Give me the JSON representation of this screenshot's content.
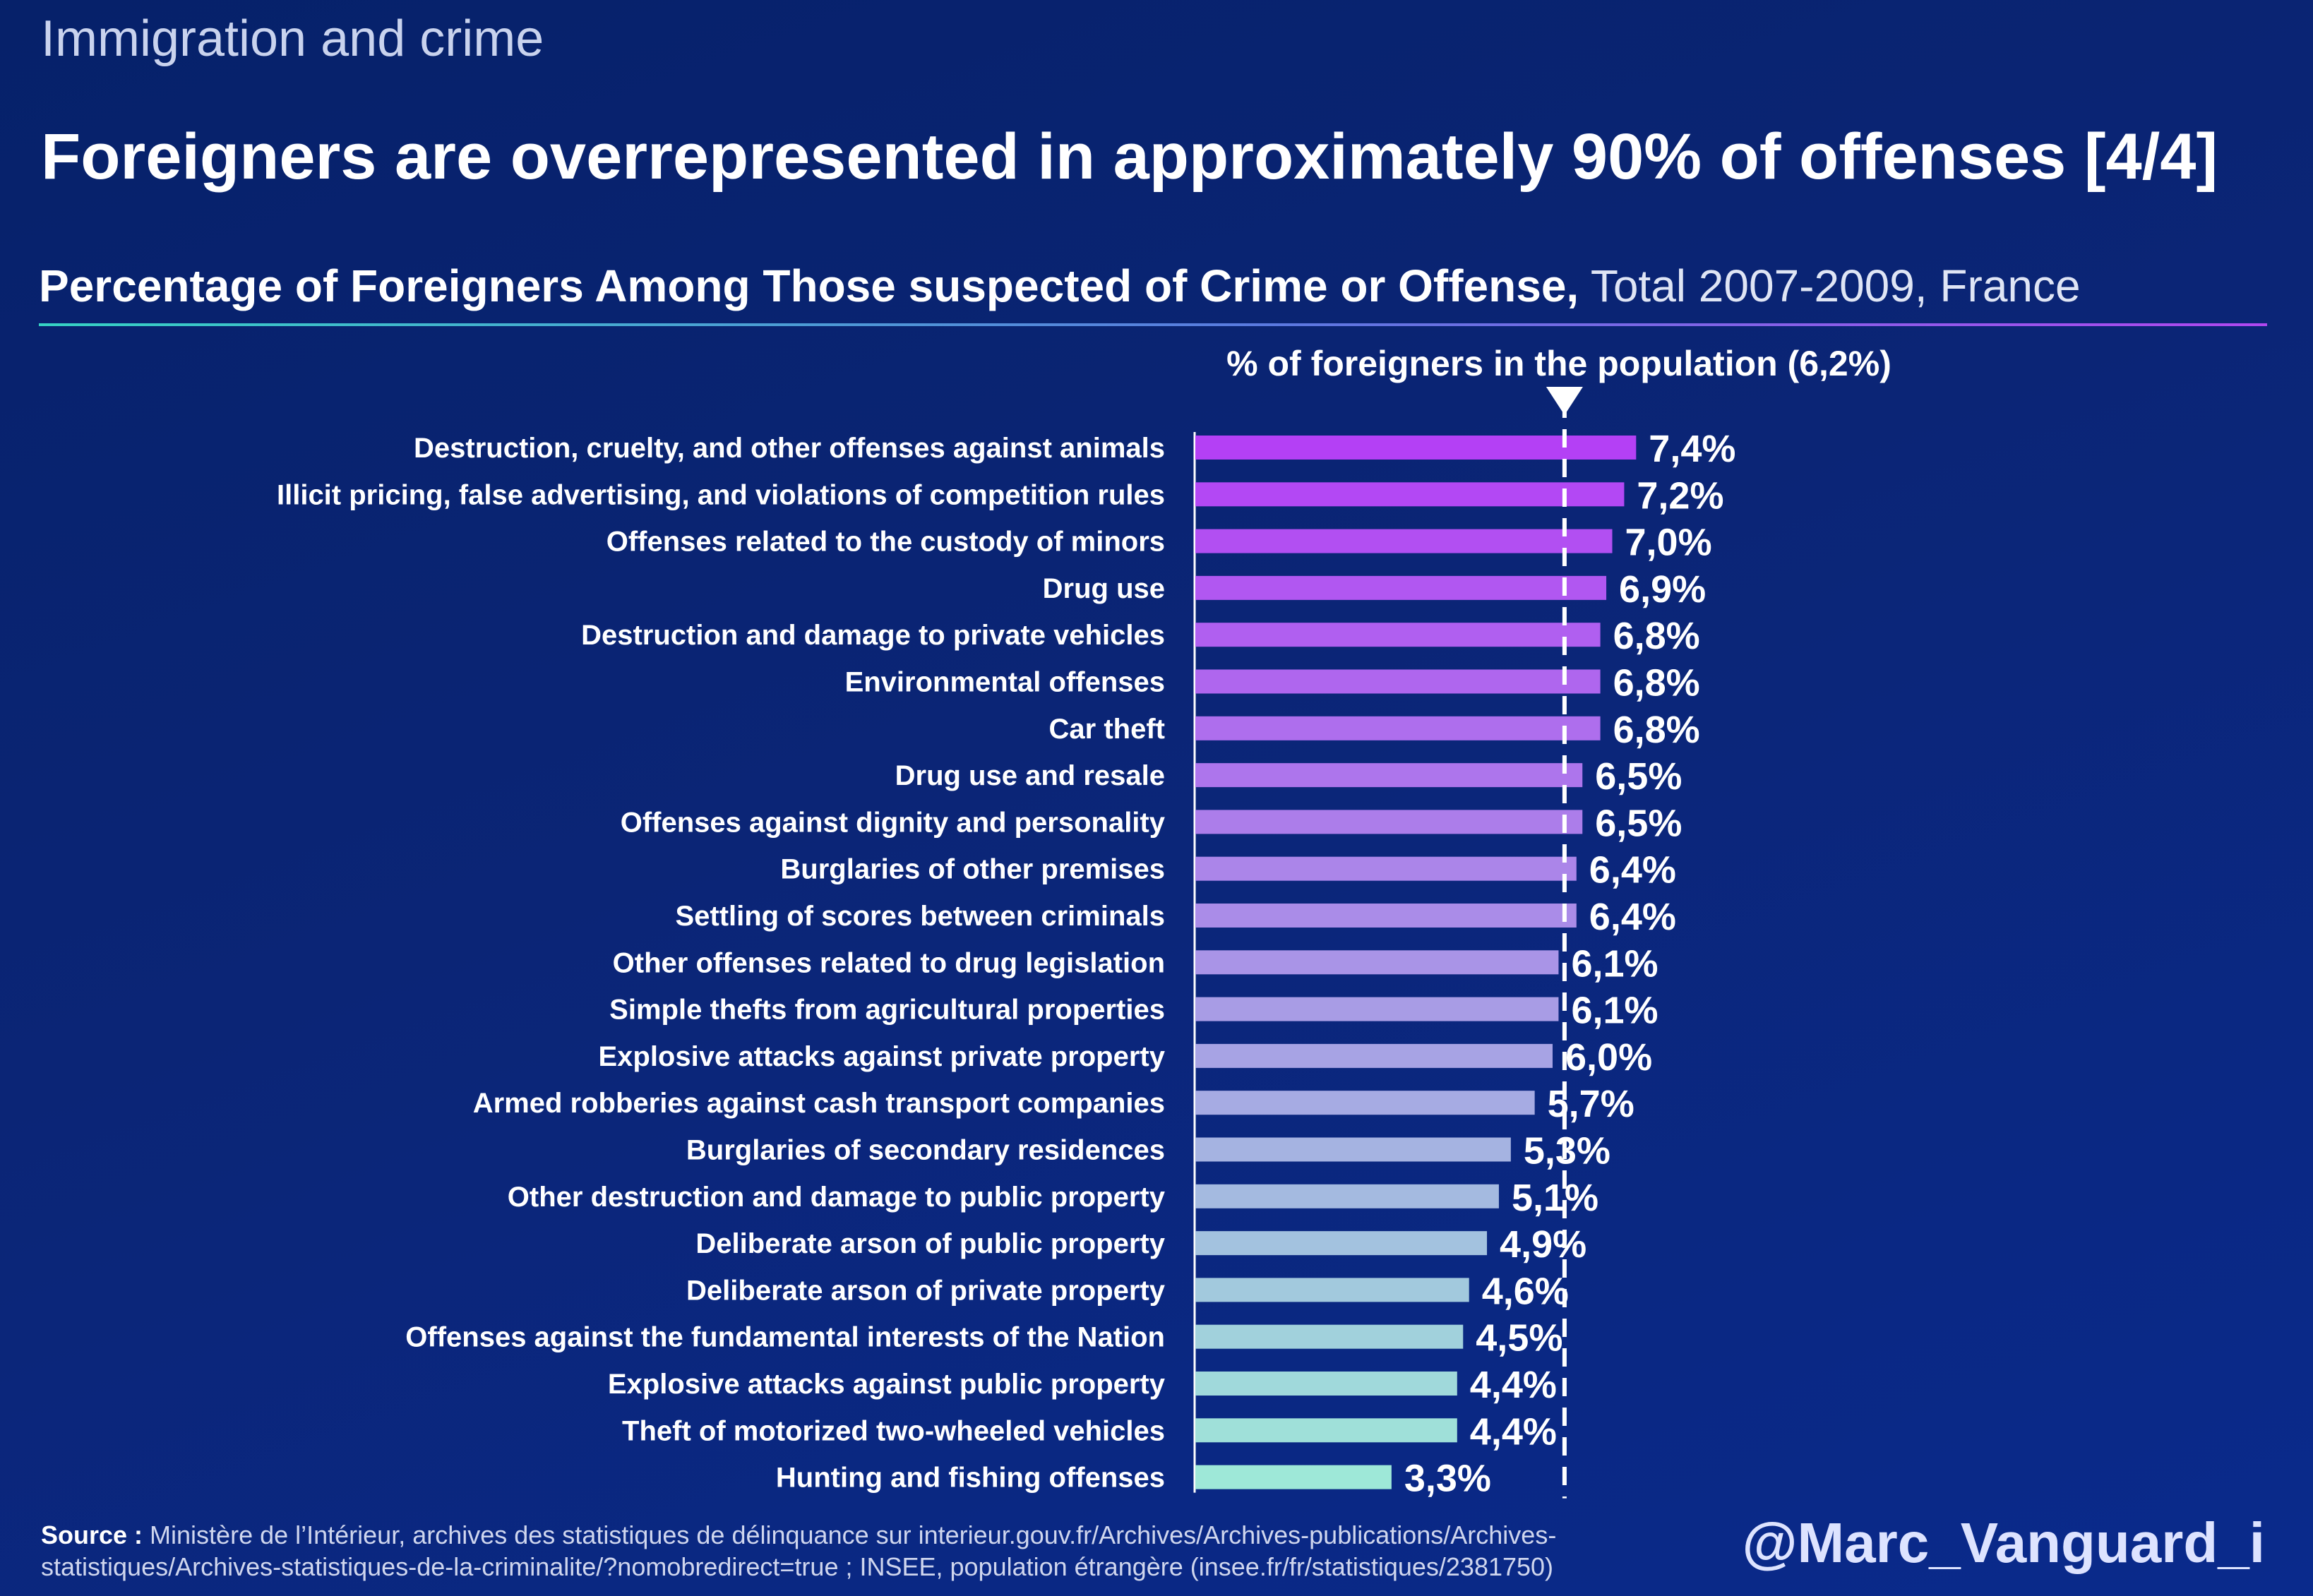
{
  "header": {
    "kicker": "Immigration and crime",
    "headline": "Foreigners are overrepresented in approximately 90% of offenses [4/4]",
    "subtitle_bold": "Percentage of Foreigners Among Those suspected of Crime or Offense,",
    "subtitle_rest": " Total 2007-2009, France"
  },
  "footer": {
    "source_label": "Source :",
    "source_text": " Ministère de l’Intérieur, archives des statistiques de délinquance sur interieur.gouv.fr/Archives/Archives-publications/Archives-statistiques/Archives-statistiques-de-la-criminalite/?nomobredirect=true ; INSEE, population étrangère (insee.fr/fr/statistiques/2381750)",
    "handle": "@Marc_Vanguard_i"
  },
  "colors": {
    "bar_top": "#b440f5",
    "bar_bottom": "#9ee8d8",
    "reference_line": "#ffffff"
  },
  "chart_data": {
    "type": "bar",
    "orientation": "horizontal",
    "categories": [
      "Destruction, cruelty, and other offenses against animals",
      "Illicit pricing, false advertising, and violations of competition rules",
      "Offenses related to the custody of minors",
      "Drug use",
      "Destruction and damage to private vehicles",
      "Environmental offenses",
      "Car theft",
      "Drug use and resale",
      "Offenses against dignity and personality",
      "Burglaries of other premises",
      "Settling of scores between criminals",
      "Other offenses related to drug legislation",
      "Simple thefts from agricultural properties",
      "Explosive attacks against private property",
      "Armed robberies against cash transport companies",
      "Burglaries of secondary residences",
      "Other destruction and damage to public property",
      "Deliberate arson of public property",
      "Deliberate arson of private property",
      "Offenses against the fundamental interests of the Nation",
      "Explosive attacks against public property",
      "Theft of motorized two-wheeled vehicles",
      "Hunting and fishing offenses"
    ],
    "values": [
      7.4,
      7.2,
      7.0,
      6.9,
      6.8,
      6.8,
      6.8,
      6.5,
      6.5,
      6.4,
      6.4,
      6.1,
      6.1,
      6.0,
      5.7,
      5.3,
      5.1,
      4.9,
      4.6,
      4.5,
      4.4,
      4.4,
      3.3
    ],
    "value_labels": [
      "7,4%",
      "7,2%",
      "7,0%",
      "6,9%",
      "6,8%",
      "6,8%",
      "6,8%",
      "6,5%",
      "6,5%",
      "6,4%",
      "6,4%",
      "6,1%",
      "6,1%",
      "6,0%",
      "5,7%",
      "5,3%",
      "5,1%",
      "4,9%",
      "4,6%",
      "4,5%",
      "4,4%",
      "4,4%",
      "3,3%"
    ],
    "reference": {
      "label": "% of foreigners in the population (6,2%)",
      "value": 6.2
    },
    "xlim": [
      0,
      8.0
    ],
    "grid": false
  }
}
